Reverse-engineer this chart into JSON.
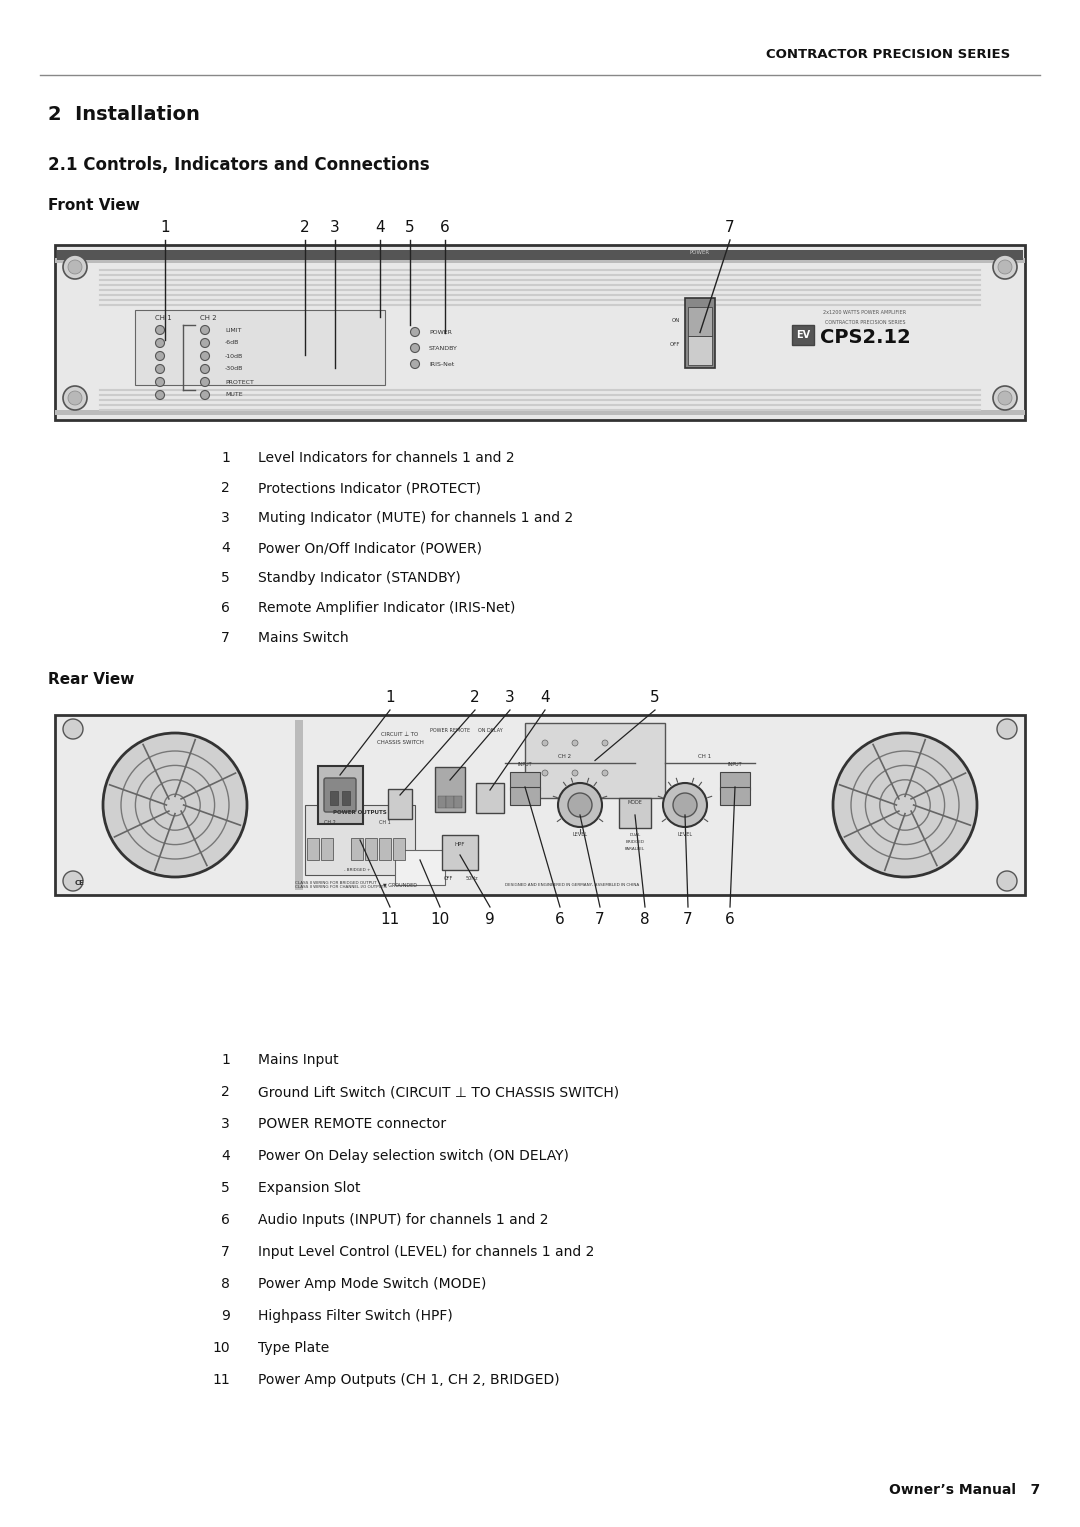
{
  "header_text": "CONTRACTOR PRECISION SERIES",
  "section_title": "2  Installation",
  "subsection_title": "2.1 Controls, Indicators and Connections",
  "front_view_label": "Front View",
  "rear_view_label": "Rear View",
  "front_numbers_labels": [
    "1",
    "2",
    "3",
    "4",
    "5",
    "6",
    "7"
  ],
  "front_items": [
    [
      "1",
      "Level Indicators for channels 1 and 2"
    ],
    [
      "2",
      "Protections Indicator (PROTECT)"
    ],
    [
      "3",
      "Muting Indicator (MUTE) for channels 1 and 2"
    ],
    [
      "4",
      "Power On/Off Indicator (POWER)"
    ],
    [
      "5",
      "Standby Indicator (STANDBY)"
    ],
    [
      "6",
      "Remote Amplifier Indicator (IRIS-Net)"
    ],
    [
      "7",
      "Mains Switch"
    ]
  ],
  "rear_numbers_top_labels": [
    "1",
    "2",
    "3",
    "4",
    "5"
  ],
  "rear_numbers_bottom_labels": [
    "11",
    "10",
    "9",
    "6",
    "7",
    "8",
    "7",
    "6"
  ],
  "rear_items": [
    [
      "1",
      "Mains Input"
    ],
    [
      "2",
      "Ground Lift Switch (CIRCUIT ⊥ TO CHASSIS SWITCH)"
    ],
    [
      "3",
      "POWER REMOTE connector"
    ],
    [
      "4",
      "Power On Delay selection switch (ON DELAY)"
    ],
    [
      "5",
      "Expansion Slot"
    ],
    [
      "6",
      "Audio Inputs (INPUT) for channels 1 and 2"
    ],
    [
      "7",
      "Input Level Control (LEVEL) for channels 1 and 2"
    ],
    [
      "8",
      "Power Amp Mode Switch (MODE)"
    ],
    [
      "9",
      "Highpass Filter Switch (HPF)"
    ],
    [
      "10",
      "Type Plate"
    ],
    [
      "11",
      "Power Amp Outputs (CH 1, CH 2, BRIDGED)"
    ]
  ],
  "footer_text": "Owner’s Manual   7",
  "bg_color": "#ffffff",
  "text_color": "#000000"
}
